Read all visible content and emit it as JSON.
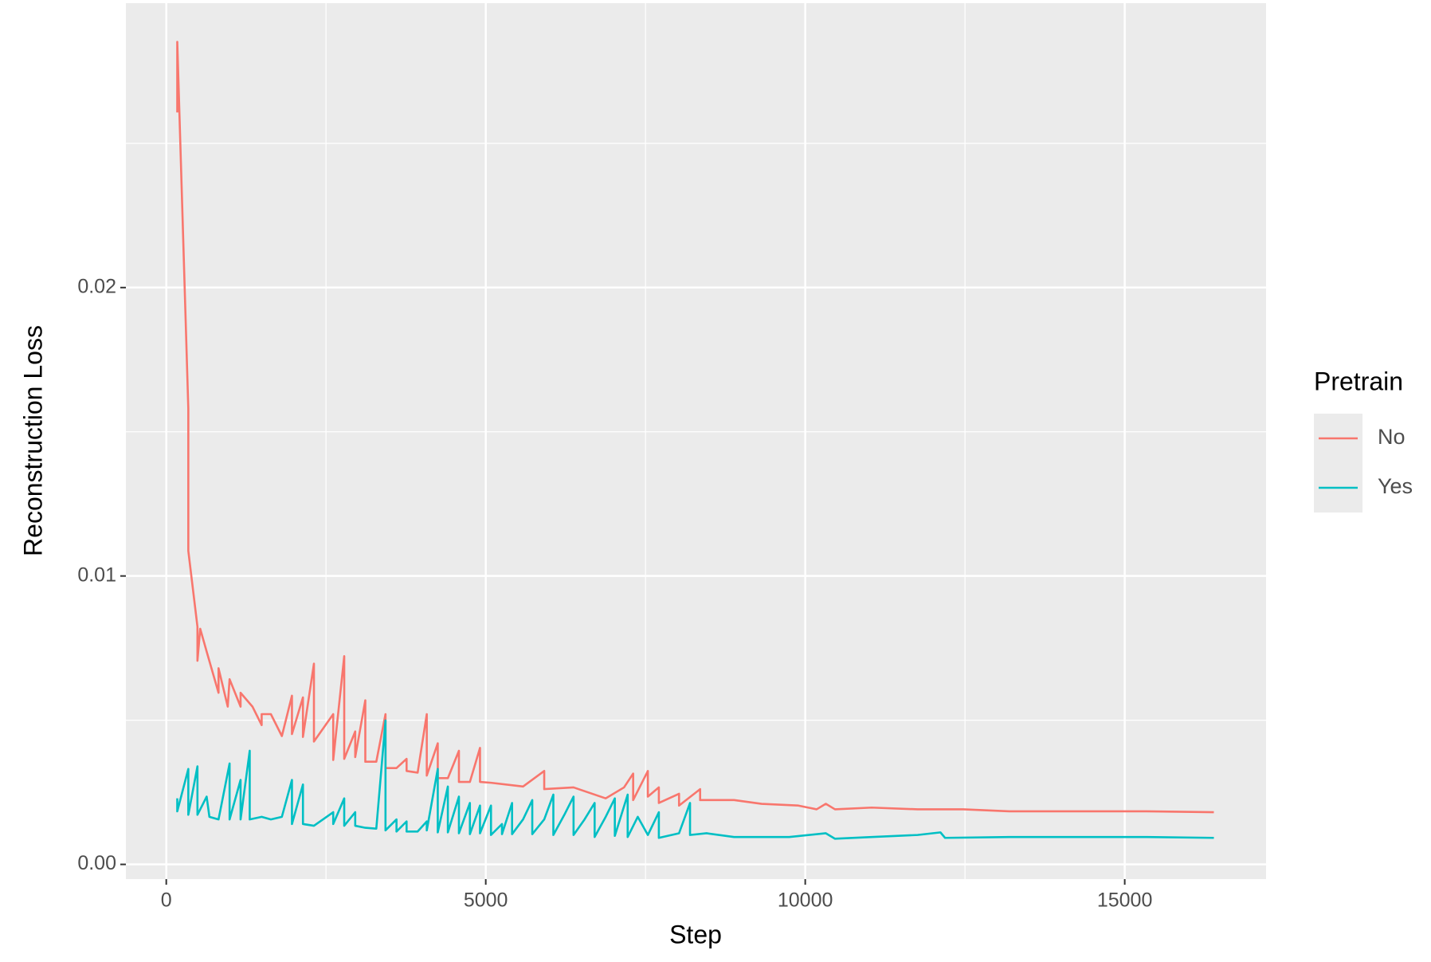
{
  "chart_data": {
    "type": "line",
    "x_label": "Step",
    "y_label": "Reconstruction Loss",
    "legend_title": "Pretrain",
    "xlim": [
      -632,
      17212
    ],
    "ylim": [
      -0.00051,
      0.02986
    ],
    "xticks": [
      0,
      5000,
      10000,
      15000
    ],
    "yticks": [
      {
        "value": 0,
        "label": "0.00"
      },
      0.01,
      0.02
    ],
    "x_minor_ticks": [
      2500,
      7500,
      12500
    ],
    "y_minor_ticks": [
      0.005,
      0.015,
      0.025
    ],
    "grid": true,
    "legend_position": "right",
    "series": [
      {
        "name": "No",
        "color": "#f8766d",
        "x": [
          172,
          172,
          345,
          345,
          488,
          488,
          531,
          632,
          818,
          818,
          962,
          991,
          1163,
          1163,
          1349,
          1493,
          1493,
          1637,
          1809,
          1967,
          1967,
          2139,
          2139,
          2311,
          2311,
          2613,
          2613,
          2785,
          2785,
          2957,
          2957,
          3115,
          3115,
          3287,
          3431,
          3431,
          3603,
          3761,
          3761,
          3934,
          4077,
          4077,
          4249,
          4249,
          4407,
          4580,
          4580,
          4752,
          4910,
          4910,
          5082,
          5584,
          5915,
          5915,
          6374,
          6877,
          7164,
          7307,
          7307,
          7537,
          7537,
          7709,
          7709,
          8025,
          8025,
          8355,
          8355,
          8886,
          9317,
          9891,
          10178,
          10322,
          10466,
          11040,
          11758,
          12475,
          13193,
          13911,
          14629,
          15347,
          16395
        ],
        "values": [
          0.02607,
          0.02852,
          0.0158,
          0.01087,
          0.00824,
          0.00706,
          0.00817,
          0.00738,
          0.00595,
          0.0068,
          0.00547,
          0.00642,
          0.00547,
          0.00595,
          0.00547,
          0.00483,
          0.00521,
          0.00521,
          0.00445,
          0.00585,
          0.00452,
          0.00579,
          0.00442,
          0.00696,
          0.00426,
          0.00521,
          0.00362,
          0.00722,
          0.00366,
          0.00461,
          0.00372,
          0.00569,
          0.00356,
          0.00356,
          0.00521,
          0.00334,
          0.00334,
          0.00366,
          0.00324,
          0.00318,
          0.00521,
          0.00308,
          0.0042,
          0.00299,
          0.00299,
          0.00394,
          0.00286,
          0.00286,
          0.00404,
          0.00286,
          0.00283,
          0.0027,
          0.00324,
          0.00261,
          0.00267,
          0.00229,
          0.00267,
          0.00315,
          0.00223,
          0.00324,
          0.00235,
          0.00267,
          0.00213,
          0.00245,
          0.00204,
          0.00261,
          0.00223,
          0.00223,
          0.0021,
          0.00204,
          0.00191,
          0.0021,
          0.00191,
          0.00197,
          0.00191,
          0.00191,
          0.00184,
          0.00184,
          0.00184,
          0.00184,
          0.00181
        ]
      },
      {
        "name": "Yes",
        "color": "#00bfc4",
        "x": [
          172,
          172,
          345,
          345,
          488,
          488,
          632,
          675,
          818,
          991,
          991,
          1163,
          1163,
          1306,
          1306,
          1493,
          1637,
          1809,
          1967,
          1967,
          2139,
          2139,
          2311,
          2613,
          2613,
          2785,
          2785,
          2957,
          2957,
          3115,
          3287,
          3431,
          3431,
          3603,
          3603,
          3761,
          3761,
          3934,
          4077,
          4077,
          4249,
          4249,
          4407,
          4407,
          4580,
          4580,
          4752,
          4752,
          4910,
          4910,
          5082,
          5082,
          5254,
          5254,
          5412,
          5412,
          5584,
          5728,
          5728,
          5915,
          6058,
          6058,
          6230,
          6374,
          6374,
          6546,
          6704,
          6704,
          6877,
          7020,
          7020,
          7221,
          7221,
          7379,
          7537,
          7709,
          7709,
          8025,
          8197,
          8197,
          8456,
          8886,
          9317,
          9748,
          10322,
          10466,
          11040,
          11758,
          12116,
          12188,
          13193,
          13911,
          14629,
          15347,
          16395
        ],
        "values": [
          0.00229,
          0.00184,
          0.00331,
          0.00172,
          0.0034,
          0.00172,
          0.00235,
          0.00165,
          0.00156,
          0.0035,
          0.00156,
          0.00293,
          0.00156,
          0.00394,
          0.00156,
          0.00165,
          0.00156,
          0.00165,
          0.00293,
          0.0014,
          0.00277,
          0.0014,
          0.00134,
          0.00181,
          0.0014,
          0.00229,
          0.00134,
          0.00181,
          0.00134,
          0.00127,
          0.00124,
          0.00499,
          0.00118,
          0.00156,
          0.00114,
          0.00149,
          0.00114,
          0.00114,
          0.00149,
          0.00118,
          0.00331,
          0.00111,
          0.0027,
          0.00111,
          0.00235,
          0.00108,
          0.00213,
          0.00105,
          0.00204,
          0.00108,
          0.00204,
          0.00102,
          0.0014,
          0.00105,
          0.00213,
          0.00105,
          0.00156,
          0.00223,
          0.00105,
          0.00156,
          0.00242,
          0.00102,
          0.00172,
          0.00235,
          0.00102,
          0.00156,
          0.00213,
          0.00095,
          0.00165,
          0.00229,
          0.00099,
          0.00242,
          0.00095,
          0.00165,
          0.00102,
          0.00181,
          0.00092,
          0.00108,
          0.00213,
          0.00102,
          0.00108,
          0.00095,
          0.00095,
          0.00095,
          0.00108,
          0.00089,
          0.00095,
          0.00102,
          0.00111,
          0.00092,
          0.00095,
          0.00095,
          0.00095,
          0.00095,
          0.00092
        ]
      }
    ]
  }
}
